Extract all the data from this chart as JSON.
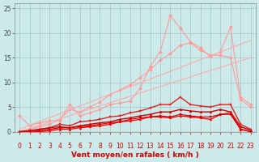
{
  "title": "",
  "xlabel": "Vent moyen/en rafales ( km/h )",
  "background_color": "#cceaea",
  "grid_color": "#aacccc",
  "xlim": [
    -0.5,
    23.5
  ],
  "ylim": [
    0,
    26
  ],
  "yticks": [
    0,
    5,
    10,
    15,
    20,
    25
  ],
  "xticks": [
    0,
    1,
    2,
    3,
    4,
    5,
    6,
    7,
    8,
    9,
    10,
    11,
    12,
    13,
    14,
    15,
    16,
    17,
    18,
    19,
    20,
    21,
    22,
    23
  ],
  "series": [
    {
      "x": [
        0,
        1,
        2,
        3,
        4,
        5,
        6,
        7,
        8,
        9,
        10,
        11,
        12,
        13,
        14,
        15,
        16,
        17,
        18,
        19,
        20,
        21,
        22,
        23
      ],
      "y": [
        3.2,
        1.2,
        1.8,
        2.2,
        2.2,
        5.5,
        3.2,
        3.8,
        4.5,
        5.5,
        5.8,
        6.2,
        8.8,
        13.2,
        16.2,
        23.5,
        21.0,
        18.2,
        17.0,
        15.2,
        16.2,
        21.2,
        7.0,
        5.5
      ],
      "color": "#ff9999",
      "linewidth": 0.8,
      "marker": "D",
      "markersize": 2.0
    },
    {
      "x": [
        0,
        1,
        2,
        3,
        4,
        5,
        6,
        7,
        8,
        9,
        10,
        11,
        12,
        13,
        14,
        15,
        16,
        17,
        18,
        19,
        20,
        21,
        22,
        23
      ],
      "y": [
        0.0,
        0.5,
        1.0,
        1.5,
        2.5,
        4.5,
        4.0,
        5.0,
        6.0,
        7.5,
        8.5,
        9.5,
        11.0,
        12.5,
        14.5,
        15.8,
        17.5,
        18.0,
        16.5,
        15.5,
        15.5,
        15.0,
        6.5,
        5.0
      ],
      "color": "#ff9999",
      "linewidth": 0.8,
      "marker": "D",
      "markersize": 2.0
    },
    {
      "x": [
        0,
        23
      ],
      "y": [
        0.0,
        15.0
      ],
      "color": "#ffaaaa",
      "linewidth": 0.8,
      "marker": null,
      "markersize": 0
    },
    {
      "x": [
        0,
        23
      ],
      "y": [
        0.5,
        18.5
      ],
      "color": "#ffaaaa",
      "linewidth": 0.8,
      "marker": null,
      "markersize": 0
    },
    {
      "x": [
        0,
        1,
        2,
        3,
        4,
        5,
        6,
        7,
        8,
        9,
        10,
        11,
        12,
        13,
        14,
        15,
        16,
        17,
        18,
        19,
        20,
        21,
        22,
        23
      ],
      "y": [
        0.0,
        0.2,
        0.5,
        0.8,
        1.5,
        1.2,
        2.0,
        2.2,
        2.5,
        3.0,
        3.2,
        3.8,
        4.2,
        4.8,
        5.5,
        5.5,
        7.0,
        5.5,
        5.2,
        5.0,
        5.5,
        5.5,
        1.5,
        0.5
      ],
      "color": "#dd2222",
      "linewidth": 1.0,
      "marker": "s",
      "markersize": 2.0
    },
    {
      "x": [
        0,
        1,
        2,
        3,
        4,
        5,
        6,
        7,
        8,
        9,
        10,
        11,
        12,
        13,
        14,
        15,
        16,
        17,
        18,
        19,
        20,
        21,
        22,
        23
      ],
      "y": [
        0.0,
        0.0,
        0.2,
        0.5,
        0.8,
        0.8,
        1.2,
        1.5,
        1.8,
        2.0,
        2.5,
        2.8,
        3.2,
        3.5,
        4.0,
        4.0,
        4.5,
        4.2,
        4.0,
        4.0,
        4.5,
        4.0,
        1.0,
        0.3
      ],
      "color": "#cc0000",
      "linewidth": 1.0,
      "marker": "^",
      "markersize": 2.0
    },
    {
      "x": [
        0,
        1,
        2,
        3,
        4,
        5,
        6,
        7,
        8,
        9,
        10,
        11,
        12,
        13,
        14,
        15,
        16,
        17,
        18,
        19,
        20,
        21,
        22,
        23
      ],
      "y": [
        0.0,
        0.0,
        0.0,
        0.2,
        0.5,
        0.5,
        0.8,
        1.0,
        1.2,
        1.5,
        2.0,
        2.2,
        2.5,
        3.0,
        3.0,
        2.8,
        3.2,
        3.0,
        2.8,
        2.5,
        3.5,
        3.8,
        0.5,
        0.0
      ],
      "color": "#ff0000",
      "linewidth": 1.0,
      "marker": "^",
      "markersize": 2.0
    },
    {
      "x": [
        0,
        1,
        2,
        3,
        4,
        5,
        6,
        7,
        8,
        9,
        10,
        11,
        12,
        13,
        14,
        15,
        16,
        17,
        18,
        19,
        20,
        21,
        22,
        23
      ],
      "y": [
        0.0,
        0.2,
        0.5,
        0.8,
        1.0,
        0.8,
        1.0,
        1.2,
        1.5,
        1.8,
        2.0,
        2.5,
        2.8,
        3.0,
        3.2,
        3.0,
        3.5,
        3.2,
        3.0,
        3.0,
        3.5,
        3.5,
        0.5,
        0.0
      ],
      "color": "#cc0000",
      "linewidth": 0.8,
      "marker": "s",
      "markersize": 1.5
    }
  ]
}
